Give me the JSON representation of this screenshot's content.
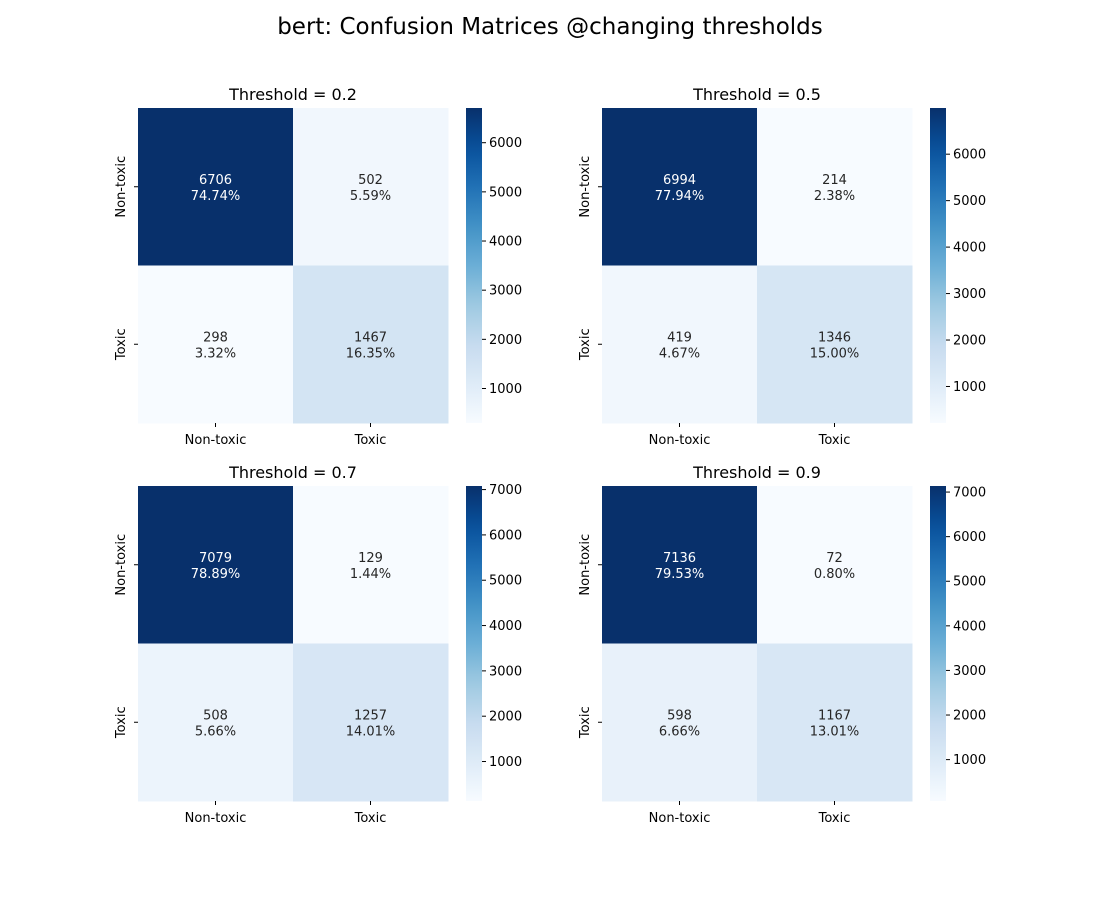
{
  "figure": {
    "title": "bert: Confusion Matrices @changing thresholds"
  },
  "colors": {
    "cmap": "Blues",
    "low": "#f7fbff",
    "high": "#08306b",
    "light_text": "#ffffff",
    "dark_text": "#262626"
  },
  "chart_data": [
    {
      "type": "heatmap",
      "title": "Threshold = 0.2",
      "row_labels": [
        "Non-toxic",
        "Toxic"
      ],
      "col_labels": [
        "Non-toxic",
        "Toxic"
      ],
      "values": [
        [
          6706,
          502
        ],
        [
          298,
          1467
        ]
      ],
      "percent_labels": [
        [
          "74.74%",
          "5.59%"
        ],
        [
          "3.32%",
          "16.35%"
        ]
      ],
      "color_range": [
        298,
        6706
      ],
      "colorbar_ticks": [
        1000,
        2000,
        3000,
        4000,
        5000,
        6000
      ],
      "grid": false
    },
    {
      "type": "heatmap",
      "title": "Threshold = 0.5",
      "row_labels": [
        "Non-toxic",
        "Toxic"
      ],
      "col_labels": [
        "Non-toxic",
        "Toxic"
      ],
      "values": [
        [
          6994,
          214
        ],
        [
          419,
          1346
        ]
      ],
      "percent_labels": [
        [
          "77.94%",
          "2.38%"
        ],
        [
          "4.67%",
          "15.00%"
        ]
      ],
      "color_range": [
        214,
        6994
      ],
      "colorbar_ticks": [
        1000,
        2000,
        3000,
        4000,
        5000,
        6000
      ],
      "grid": false
    },
    {
      "type": "heatmap",
      "title": "Threshold = 0.7",
      "row_labels": [
        "Non-toxic",
        "Toxic"
      ],
      "col_labels": [
        "Non-toxic",
        "Toxic"
      ],
      "values": [
        [
          7079,
          129
        ],
        [
          508,
          1257
        ]
      ],
      "percent_labels": [
        [
          "78.89%",
          "1.44%"
        ],
        [
          "5.66%",
          "14.01%"
        ]
      ],
      "color_range": [
        129,
        7079
      ],
      "colorbar_ticks": [
        1000,
        2000,
        3000,
        4000,
        5000,
        6000,
        7000
      ],
      "grid": false
    },
    {
      "type": "heatmap",
      "title": "Threshold = 0.9",
      "row_labels": [
        "Non-toxic",
        "Toxic"
      ],
      "col_labels": [
        "Non-toxic",
        "Toxic"
      ],
      "values": [
        [
          7136,
          72
        ],
        [
          598,
          1167
        ]
      ],
      "percent_labels": [
        [
          "79.53%",
          "0.80%"
        ],
        [
          "6.66%",
          "13.01%"
        ]
      ],
      "color_range": [
        72,
        7136
      ],
      "colorbar_ticks": [
        1000,
        2000,
        3000,
        4000,
        5000,
        6000,
        7000
      ],
      "grid": false
    }
  ]
}
